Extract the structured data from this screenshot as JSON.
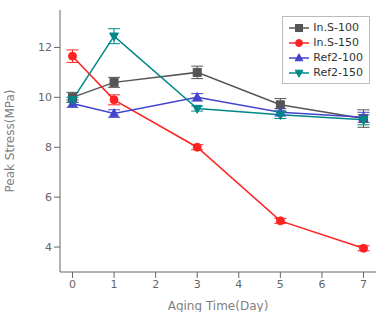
{
  "chart_data": {
    "type": "line",
    "xlabel": "Aging Time(Day)",
    "ylabel": "Peak Stress(MPa)",
    "x": [
      0,
      1,
      3,
      5,
      7
    ],
    "series": [
      {
        "name": "In.S-100",
        "color": "#555555",
        "marker": "square",
        "values": [
          10.0,
          10.6,
          11.0,
          9.7,
          9.15
        ],
        "yerr": [
          0.2,
          0.2,
          0.25,
          0.25,
          0.35
        ]
      },
      {
        "name": "In.S-150",
        "color": "#ff2222",
        "marker": "circle",
        "values": [
          11.65,
          9.9,
          8.0,
          5.05,
          3.95
        ],
        "yerr": [
          0.25,
          0.2,
          0.1,
          0.1,
          0.1
        ]
      },
      {
        "name": "Ref2-100",
        "color": "#4444cc",
        "marker": "triangle-up",
        "values": [
          9.75,
          9.35,
          10.0,
          9.4,
          9.2
        ],
        "yerr": [
          0.15,
          0.15,
          0.15,
          0.15,
          0.2
        ]
      },
      {
        "name": "Ref2-150",
        "color": "#008888",
        "marker": "triangle-down",
        "values": [
          9.9,
          12.45,
          9.55,
          9.3,
          9.1
        ],
        "yerr": [
          0.1,
          0.3,
          0.1,
          0.15,
          0.2
        ]
      }
    ],
    "xlim": [
      -0.3,
      7.3
    ],
    "ylim": [
      3.0,
      13.5
    ],
    "xticks": [
      0,
      1,
      2,
      3,
      4,
      5,
      6,
      7
    ],
    "yticks": [
      4,
      6,
      8,
      10,
      12
    ],
    "legend": "upper right",
    "grid": false
  }
}
